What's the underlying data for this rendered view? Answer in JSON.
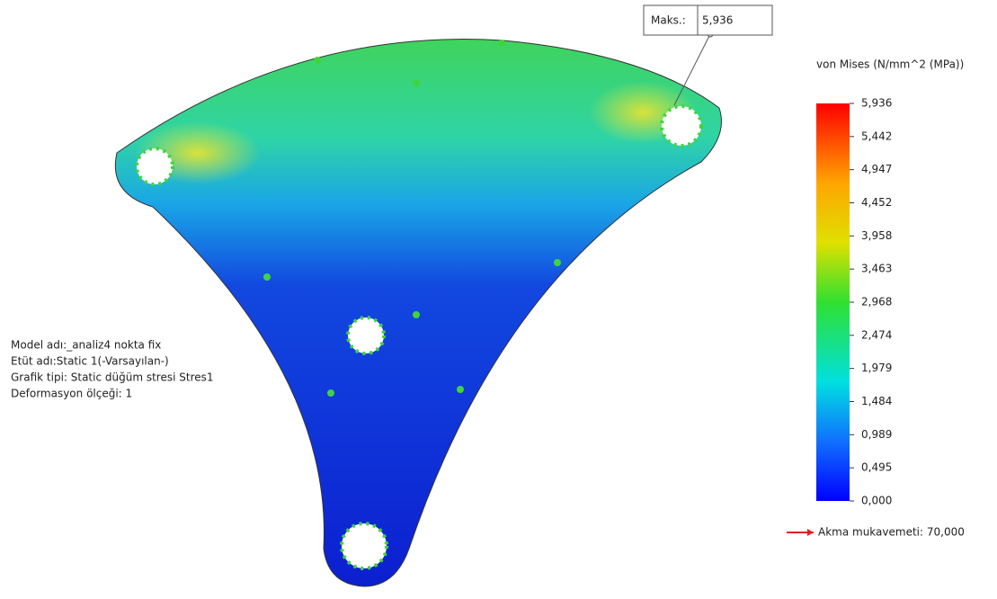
{
  "probe": {
    "label": "Maks.:",
    "value": "5,936"
  },
  "info": [
    "Model adı:_analiz4 nokta fix",
    "Etüt adı:Static 1(-Varsayılan-)",
    "Grafik tipi: Static düğüm stresi Stres1",
    "Deformasyon ölçeği: 1"
  ],
  "legend": {
    "title": "von Mises (N/mm^2 (MPa))",
    "ticks": [
      "5,936",
      "5,442",
      "4,947",
      "4,452",
      "3,958",
      "3,463",
      "2,968",
      "2,474",
      "1,979",
      "1,484",
      "0,989",
      "0,495",
      "0,000"
    ],
    "yield": "Akma mukavemeti: 70,000"
  }
}
